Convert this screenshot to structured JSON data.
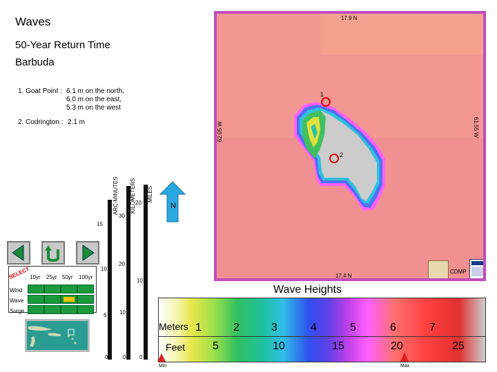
{
  "title": "Waves",
  "subtitle": "50-Year Return Time",
  "location": "Barbuda",
  "points": [
    {
      "label": "1. Goat Point :",
      "desc": [
        "6.1 m on the north,",
        "6.0 m on the east,",
        "5.3 m on the west"
      ]
    },
    {
      "label": "2. Codrington :",
      "desc": [
        "2.1 m"
      ]
    }
  ],
  "scale": {
    "arc_minutes_label": "ARC-MINUTES",
    "kilometers_label": "KILOMETERS",
    "miles_label": "MILES",
    "ticks": [
      "15",
      "10",
      "6",
      "0",
      "30",
      "20",
      "10",
      "0",
      "20",
      "10",
      "0"
    ],
    "north": "N"
  },
  "map": {
    "top_lat": "17.9 N",
    "bottom_lat": "17.4 N",
    "left_lon": "62.05 W",
    "right_lon": "61.55 W",
    "marker_1": "1",
    "marker_2": "2",
    "credit": "CDMP",
    "ocean_color": "#f09090",
    "frame_color": "#c04cc0",
    "land_color": "#cccccc"
  },
  "selector": {
    "select_text": "SELECT",
    "columns": [
      "10yr",
      "25yr",
      "50yr",
      "100yr"
    ],
    "rows": [
      "Wind",
      "Wave",
      "Surge"
    ],
    "active_row": 1,
    "active_col": 2,
    "active_color": "#f0c000"
  },
  "legend": {
    "title": "Wave Heights",
    "meters_label": "Meters",
    "meters": [
      "1",
      "2",
      "3",
      "4",
      "5",
      "6",
      "7"
    ],
    "feet_label": "Feet",
    "feet": [
      "5",
      "10",
      "15",
      "20",
      "25"
    ],
    "min_label": "Min",
    "max_label": "Max",
    "min_fraction": 0.0,
    "max_fraction": 0.77
  }
}
